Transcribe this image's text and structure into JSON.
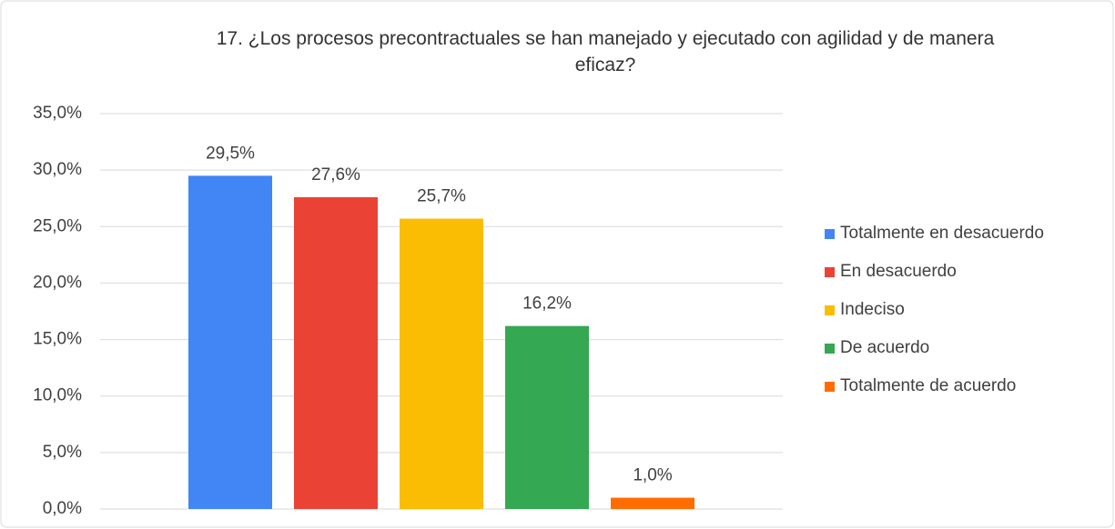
{
  "chart_data": {
    "type": "bar",
    "title": "17. ¿Los procesos precontractuales se han manejado y ejecutado con agilidad y de manera eficaz?",
    "categories": [
      null
    ],
    "series": [
      {
        "name": "Totalmente en desacuerdo",
        "color": "#4285f4",
        "values": [
          29.5
        ],
        "value_labels": [
          "29,5%"
        ]
      },
      {
        "name": "En desacuerdo",
        "color": "#ea4335",
        "values": [
          27.6
        ],
        "value_labels": [
          "27,6%"
        ]
      },
      {
        "name": "Indeciso",
        "color": "#fbbc04",
        "values": [
          25.7
        ],
        "value_labels": [
          "25,7%"
        ]
      },
      {
        "name": "De acuerdo",
        "color": "#34a853",
        "values": [
          16.2
        ],
        "value_labels": [
          "16,2%"
        ]
      },
      {
        "name": "Totalmente de acuerdo",
        "color": "#ff6d01",
        "values": [
          1.0
        ],
        "value_labels": [
          "1,0%"
        ]
      }
    ],
    "ylim": [
      0,
      35
    ],
    "yticks": [
      {
        "value": 0,
        "label": "0,0%"
      },
      {
        "value": 5,
        "label": "5,0%"
      },
      {
        "value": 10,
        "label": "10,0%"
      },
      {
        "value": 15,
        "label": "15,0%"
      },
      {
        "value": 20,
        "label": "20,0%"
      },
      {
        "value": 25,
        "label": "25,0%"
      },
      {
        "value": 30,
        "label": "30,0%"
      },
      {
        "value": 35,
        "label": "35,0%"
      }
    ],
    "grid": true,
    "legend": "right"
  }
}
